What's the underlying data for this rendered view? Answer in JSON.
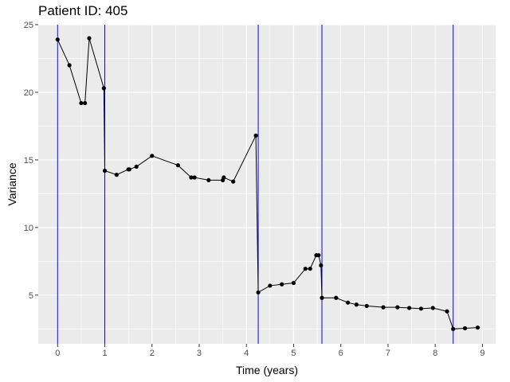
{
  "chart_data": {
    "type": "line",
    "title": "Patient ID: 405",
    "xlabel": "Time (years)",
    "ylabel": "Variance",
    "xlim": [
      -0.41,
      9.28
    ],
    "ylim": [
      1.4,
      25.0
    ],
    "xticks": [
      0,
      1,
      2,
      3,
      4,
      5,
      6,
      7,
      8,
      9
    ],
    "yticks": [
      5,
      10,
      15,
      20,
      25
    ],
    "grid": true,
    "background": "#ebebeb",
    "gridline_color": "#ffffff",
    "vline_color": "#0000ff",
    "series_color": "#000000",
    "vlines": [
      0.0,
      1.0,
      4.25,
      5.6,
      8.38
    ],
    "series": [
      {
        "x": [
          0.0,
          0.25,
          0.5,
          0.58,
          0.67,
          0.98,
          1.0,
          1.25,
          1.5,
          1.52,
          1.67,
          2.0,
          2.55,
          2.83,
          2.9,
          3.2,
          3.5,
          3.52,
          3.72,
          4.2,
          4.25,
          4.5,
          4.75,
          5.0,
          5.25,
          5.35,
          5.48,
          5.53,
          5.58,
          5.6,
          5.9,
          6.15,
          6.33,
          6.55,
          6.9,
          7.2,
          7.45,
          7.7,
          7.95,
          8.25,
          8.38,
          8.63,
          8.9
        ],
        "y": [
          23.9,
          22.0,
          19.2,
          19.2,
          24.0,
          20.3,
          14.2,
          13.9,
          14.3,
          14.3,
          14.5,
          15.3,
          14.6,
          13.7,
          13.7,
          13.5,
          13.5,
          13.7,
          13.4,
          16.8,
          5.2,
          5.7,
          5.8,
          5.9,
          6.95,
          6.95,
          7.95,
          7.95,
          7.2,
          4.8,
          4.8,
          4.45,
          4.3,
          4.2,
          4.1,
          4.1,
          4.05,
          4.0,
          4.05,
          3.8,
          2.5,
          2.55,
          2.6
        ]
      }
    ]
  }
}
